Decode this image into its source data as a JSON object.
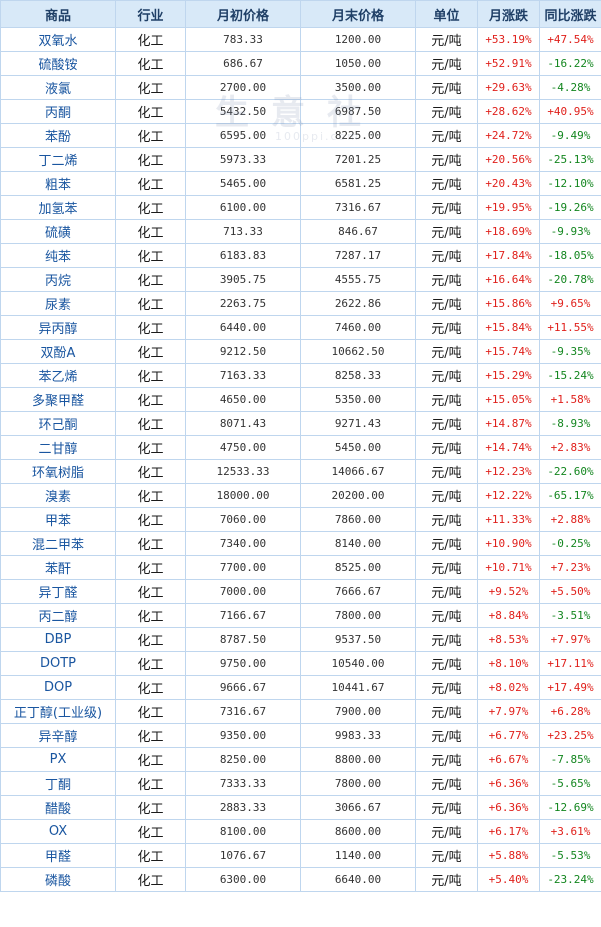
{
  "headers": [
    "商品",
    "行业",
    "月初价格",
    "月末价格",
    "单位",
    "月涨跌",
    "同比涨跌"
  ],
  "watermark": {
    "text": "生意社",
    "sub": "100ppi.com"
  },
  "colors": {
    "header_bg": "#d8e9f8",
    "border": "#bfd6ee",
    "up": "#e0201b",
    "down": "#13861f",
    "name": "#1a56a0"
  },
  "rows": [
    {
      "name": "双氧水",
      "industry": "化工",
      "start": "783.33",
      "end": "1200.00",
      "unit": "元/吨",
      "mom": "+53.19%",
      "yoy": "+47.54%"
    },
    {
      "name": "硫酸铵",
      "industry": "化工",
      "start": "686.67",
      "end": "1050.00",
      "unit": "元/吨",
      "mom": "+52.91%",
      "yoy": "-16.22%"
    },
    {
      "name": "液氯",
      "industry": "化工",
      "start": "2700.00",
      "end": "3500.00",
      "unit": "元/吨",
      "mom": "+29.63%",
      "yoy": "-4.28%"
    },
    {
      "name": "丙酮",
      "industry": "化工",
      "start": "5432.50",
      "end": "6987.50",
      "unit": "元/吨",
      "mom": "+28.62%",
      "yoy": "+40.95%"
    },
    {
      "name": "苯酚",
      "industry": "化工",
      "start": "6595.00",
      "end": "8225.00",
      "unit": "元/吨",
      "mom": "+24.72%",
      "yoy": "-9.49%"
    },
    {
      "name": "丁二烯",
      "industry": "化工",
      "start": "5973.33",
      "end": "7201.25",
      "unit": "元/吨",
      "mom": "+20.56%",
      "yoy": "-25.13%"
    },
    {
      "name": "粗苯",
      "industry": "化工",
      "start": "5465.00",
      "end": "6581.25",
      "unit": "元/吨",
      "mom": "+20.43%",
      "yoy": "-12.10%"
    },
    {
      "name": "加氢苯",
      "industry": "化工",
      "start": "6100.00",
      "end": "7316.67",
      "unit": "元/吨",
      "mom": "+19.95%",
      "yoy": "-19.26%"
    },
    {
      "name": "硫磺",
      "industry": "化工",
      "start": "713.33",
      "end": "846.67",
      "unit": "元/吨",
      "mom": "+18.69%",
      "yoy": "-9.93%"
    },
    {
      "name": "纯苯",
      "industry": "化工",
      "start": "6183.83",
      "end": "7287.17",
      "unit": "元/吨",
      "mom": "+17.84%",
      "yoy": "-18.05%"
    },
    {
      "name": "丙烷",
      "industry": "化工",
      "start": "3905.75",
      "end": "4555.75",
      "unit": "元/吨",
      "mom": "+16.64%",
      "yoy": "-20.78%"
    },
    {
      "name": "尿素",
      "industry": "化工",
      "start": "2263.75",
      "end": "2622.86",
      "unit": "元/吨",
      "mom": "+15.86%",
      "yoy": "+9.65%"
    },
    {
      "name": "异丙醇",
      "industry": "化工",
      "start": "6440.00",
      "end": "7460.00",
      "unit": "元/吨",
      "mom": "+15.84%",
      "yoy": "+11.55%"
    },
    {
      "name": "双酚A",
      "industry": "化工",
      "start": "9212.50",
      "end": "10662.50",
      "unit": "元/吨",
      "mom": "+15.74%",
      "yoy": "-9.35%"
    },
    {
      "name": "苯乙烯",
      "industry": "化工",
      "start": "7163.33",
      "end": "8258.33",
      "unit": "元/吨",
      "mom": "+15.29%",
      "yoy": "-15.24%"
    },
    {
      "name": "多聚甲醛",
      "industry": "化工",
      "start": "4650.00",
      "end": "5350.00",
      "unit": "元/吨",
      "mom": "+15.05%",
      "yoy": "+1.58%"
    },
    {
      "name": "环己酮",
      "industry": "化工",
      "start": "8071.43",
      "end": "9271.43",
      "unit": "元/吨",
      "mom": "+14.87%",
      "yoy": "-8.93%"
    },
    {
      "name": "二甘醇",
      "industry": "化工",
      "start": "4750.00",
      "end": "5450.00",
      "unit": "元/吨",
      "mom": "+14.74%",
      "yoy": "+2.83%"
    },
    {
      "name": "环氧树脂",
      "industry": "化工",
      "start": "12533.33",
      "end": "14066.67",
      "unit": "元/吨",
      "mom": "+12.23%",
      "yoy": "-22.60%"
    },
    {
      "name": "溴素",
      "industry": "化工",
      "start": "18000.00",
      "end": "20200.00",
      "unit": "元/吨",
      "mom": "+12.22%",
      "yoy": "-65.17%"
    },
    {
      "name": "甲苯",
      "industry": "化工",
      "start": "7060.00",
      "end": "7860.00",
      "unit": "元/吨",
      "mom": "+11.33%",
      "yoy": "+2.88%"
    },
    {
      "name": "混二甲苯",
      "industry": "化工",
      "start": "7340.00",
      "end": "8140.00",
      "unit": "元/吨",
      "mom": "+10.90%",
      "yoy": "-0.25%"
    },
    {
      "name": "苯酐",
      "industry": "化工",
      "start": "7700.00",
      "end": "8525.00",
      "unit": "元/吨",
      "mom": "+10.71%",
      "yoy": "+7.23%"
    },
    {
      "name": "异丁醛",
      "industry": "化工",
      "start": "7000.00",
      "end": "7666.67",
      "unit": "元/吨",
      "mom": "+9.52%",
      "yoy": "+5.50%"
    },
    {
      "name": "丙二醇",
      "industry": "化工",
      "start": "7166.67",
      "end": "7800.00",
      "unit": "元/吨",
      "mom": "+8.84%",
      "yoy": "-3.51%"
    },
    {
      "name": "DBP",
      "industry": "化工",
      "start": "8787.50",
      "end": "9537.50",
      "unit": "元/吨",
      "mom": "+8.53%",
      "yoy": "+7.97%"
    },
    {
      "name": "DOTP",
      "industry": "化工",
      "start": "9750.00",
      "end": "10540.00",
      "unit": "元/吨",
      "mom": "+8.10%",
      "yoy": "+17.11%"
    },
    {
      "name": "DOP",
      "industry": "化工",
      "start": "9666.67",
      "end": "10441.67",
      "unit": "元/吨",
      "mom": "+8.02%",
      "yoy": "+17.49%"
    },
    {
      "name": "正丁醇(工业级)",
      "industry": "化工",
      "start": "7316.67",
      "end": "7900.00",
      "unit": "元/吨",
      "mom": "+7.97%",
      "yoy": "+6.28%"
    },
    {
      "name": "异辛醇",
      "industry": "化工",
      "start": "9350.00",
      "end": "9983.33",
      "unit": "元/吨",
      "mom": "+6.77%",
      "yoy": "+23.25%"
    },
    {
      "name": "PX",
      "industry": "化工",
      "start": "8250.00",
      "end": "8800.00",
      "unit": "元/吨",
      "mom": "+6.67%",
      "yoy": "-7.85%"
    },
    {
      "name": "丁酮",
      "industry": "化工",
      "start": "7333.33",
      "end": "7800.00",
      "unit": "元/吨",
      "mom": "+6.36%",
      "yoy": "-5.65%"
    },
    {
      "name": "醋酸",
      "industry": "化工",
      "start": "2883.33",
      "end": "3066.67",
      "unit": "元/吨",
      "mom": "+6.36%",
      "yoy": "-12.69%"
    },
    {
      "name": "OX",
      "industry": "化工",
      "start": "8100.00",
      "end": "8600.00",
      "unit": "元/吨",
      "mom": "+6.17%",
      "yoy": "+3.61%"
    },
    {
      "name": "甲醛",
      "industry": "化工",
      "start": "1076.67",
      "end": "1140.00",
      "unit": "元/吨",
      "mom": "+5.88%",
      "yoy": "-5.53%"
    },
    {
      "name": "磷酸",
      "industry": "化工",
      "start": "6300.00",
      "end": "6640.00",
      "unit": "元/吨",
      "mom": "+5.40%",
      "yoy": "-23.24%"
    }
  ]
}
